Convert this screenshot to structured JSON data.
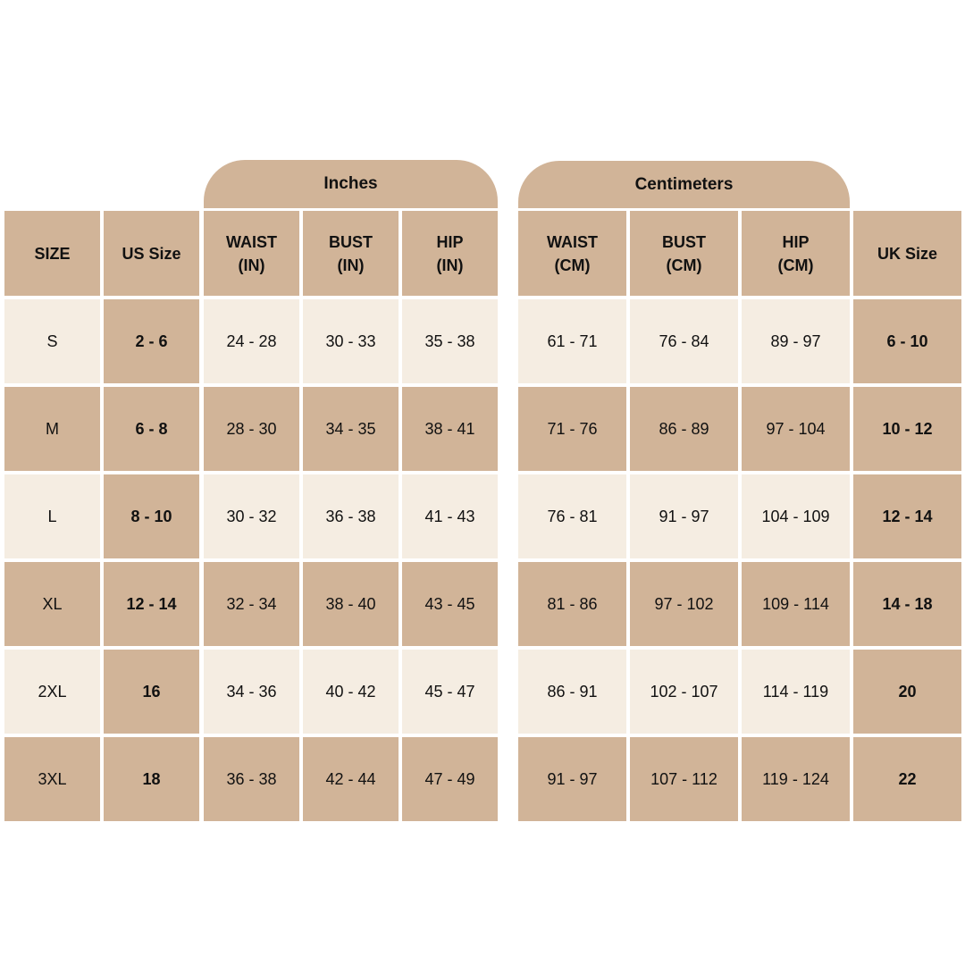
{
  "groups": [
    "Inches",
    "Centimeters"
  ],
  "columns": [
    [
      "SIZE"
    ],
    [
      "US Size"
    ],
    [
      "WAIST",
      "(IN)"
    ],
    [
      "BUST",
      "(IN)"
    ],
    [
      "HIP",
      "(IN)"
    ],
    [
      "WAIST",
      "(CM)"
    ],
    [
      "BUST",
      "(CM)"
    ],
    [
      "HIP",
      "(CM)"
    ],
    [
      "UK Size"
    ]
  ],
  "rows": [
    [
      "S",
      "2 - 6",
      "24 - 28",
      "30 - 33",
      "35 - 38",
      "61 - 71",
      "76 - 84",
      "89 - 97",
      "6 - 10"
    ],
    [
      "M",
      "6 - 8",
      "28 - 30",
      "34 - 35",
      "38 - 41",
      "71 - 76",
      "86 - 89",
      "97 - 104",
      "10 - 12"
    ],
    [
      "L",
      "8 - 10",
      "30 - 32",
      "36 - 38",
      "41 - 43",
      "76 - 81",
      "91 - 97",
      "104 - 109",
      "12 - 14"
    ],
    [
      "XL",
      "12 - 14",
      "32 - 34",
      "38 - 40",
      "43 - 45",
      "81 - 86",
      "97 - 102",
      "109 - 114",
      "14 - 18"
    ],
    [
      "2XL",
      "16",
      "34 - 36",
      "40 - 42",
      "45 - 47",
      "86 - 91",
      "102 - 107",
      "114 - 119",
      "20"
    ],
    [
      "3XL",
      "18",
      "36 - 38",
      "42 - 44",
      "47 - 49",
      "91 - 97",
      "107 - 112",
      "119 - 124",
      "22"
    ]
  ]
}
